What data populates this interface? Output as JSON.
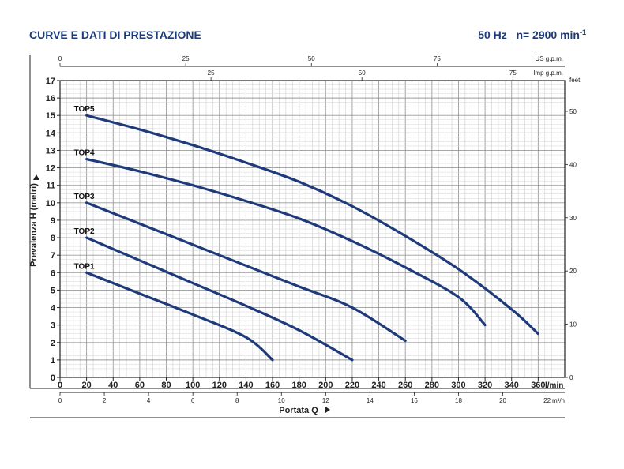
{
  "header": {
    "title": "CURVE E DATI DI PRESTAZIONE",
    "freq": "50 Hz",
    "speed_prefix": "n= 2900 min",
    "speed_exp": "-1"
  },
  "chart_data": {
    "type": "line",
    "title": "CURVE E DATI DI PRESTAZIONE",
    "ylabel": "Prevalenza H (metri)",
    "xlabel": "Portata Q",
    "grid": true,
    "legend": "inline labels at start of each curve",
    "x_unit": "l/min",
    "xlim": [
      0,
      380
    ],
    "ylim": [
      0,
      17
    ],
    "x_ticks": [
      "0",
      "20",
      "40",
      "60",
      "80",
      "100",
      "120",
      "140",
      "160",
      "180",
      "200",
      "220",
      "240",
      "260",
      "280",
      "300",
      "320",
      "340",
      "360"
    ],
    "y_ticks": [
      "0",
      "1",
      "2",
      "3",
      "4",
      "5",
      "6",
      "7",
      "8",
      "9",
      "10",
      "11",
      "12",
      "13",
      "14",
      "15",
      "16",
      "17"
    ],
    "secondary_axes": {
      "us_gpm": {
        "unit": "US g.p.m.",
        "ticks": [
          "0",
          "25",
          "50",
          "75"
        ]
      },
      "imp_gpm": {
        "unit": "Imp g.p.m.",
        "ticks": [
          "25",
          "50",
          "75"
        ]
      },
      "m3h": {
        "unit": "m³/h",
        "ticks": [
          "0",
          "2",
          "4",
          "6",
          "8",
          "10",
          "12",
          "14",
          "16",
          "18",
          "20",
          "22"
        ]
      },
      "feet": {
        "unit": "feet",
        "ticks": [
          "0",
          "10",
          "20",
          "30",
          "40",
          "50"
        ]
      }
    },
    "series": [
      {
        "name": "TOP1",
        "color": "#1f3a7a",
        "points": [
          [
            20,
            6.0
          ],
          [
            60,
            4.8
          ],
          [
            100,
            3.6
          ],
          [
            140,
            2.3
          ],
          [
            160,
            1.0
          ]
        ]
      },
      {
        "name": "TOP2",
        "color": "#1f3a7a",
        "points": [
          [
            20,
            8.0
          ],
          [
            60,
            6.7
          ],
          [
            100,
            5.4
          ],
          [
            140,
            4.1
          ],
          [
            180,
            2.7
          ],
          [
            220,
            1.0
          ]
        ]
      },
      {
        "name": "TOP3",
        "color": "#1f3a7a",
        "points": [
          [
            20,
            10.0
          ],
          [
            60,
            8.8
          ],
          [
            100,
            7.6
          ],
          [
            140,
            6.4
          ],
          [
            180,
            5.2
          ],
          [
            220,
            4.0
          ],
          [
            260,
            2.1
          ]
        ]
      },
      {
        "name": "TOP4",
        "color": "#1f3a7a",
        "points": [
          [
            20,
            12.5
          ],
          [
            60,
            11.8
          ],
          [
            100,
            11.0
          ],
          [
            140,
            10.1
          ],
          [
            180,
            9.1
          ],
          [
            220,
            7.8
          ],
          [
            260,
            6.3
          ],
          [
            300,
            4.6
          ],
          [
            320,
            3.0
          ]
        ]
      },
      {
        "name": "TOP5",
        "color": "#1f3a7a",
        "points": [
          [
            20,
            15.0
          ],
          [
            60,
            14.2
          ],
          [
            100,
            13.3
          ],
          [
            140,
            12.3
          ],
          [
            180,
            11.2
          ],
          [
            220,
            9.8
          ],
          [
            260,
            8.1
          ],
          [
            300,
            6.2
          ],
          [
            340,
            3.9
          ],
          [
            360,
            2.5
          ]
        ]
      }
    ]
  }
}
